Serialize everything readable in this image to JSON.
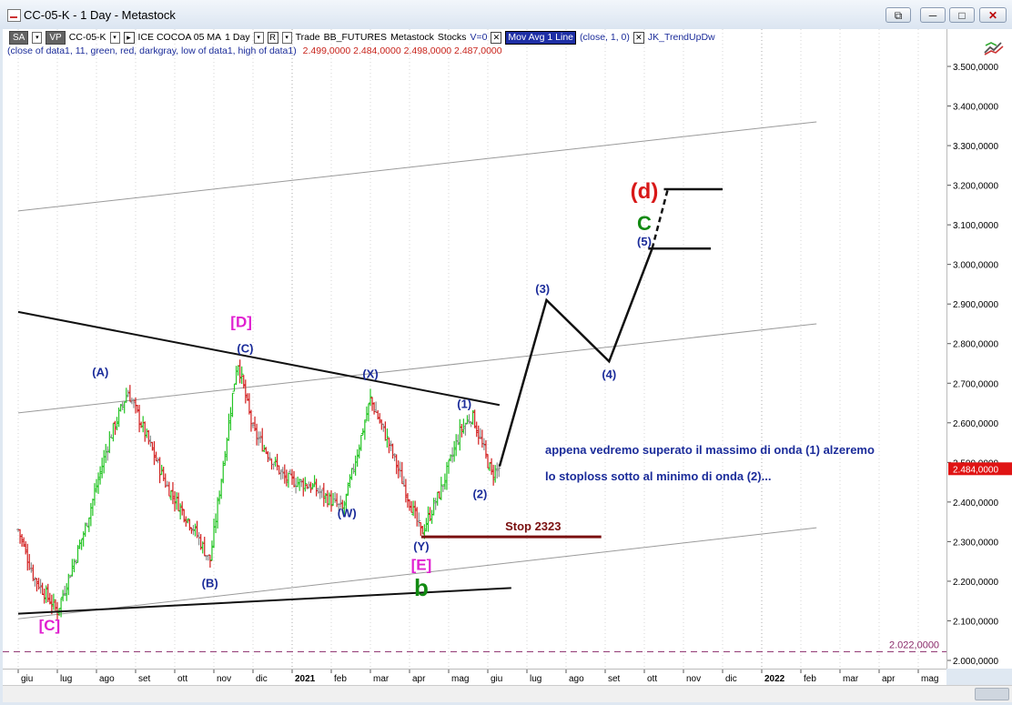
{
  "window": {
    "title": "CC-05-K - 1 Day - Metastock",
    "controls": [
      "⧉",
      "─",
      "□",
      "✕"
    ]
  },
  "toolbar": {
    "sa": "SA",
    "vp": "VP",
    "symbol": "CC-05-K",
    "description": "ICE COCOA 05 MA",
    "interval": "1 Day",
    "trade": "Trade",
    "feed": "BB_FUTURES",
    "provider": "Metastock",
    "type": "Stocks",
    "volume": "V=0",
    "indicator": "Mov Avg 1 Line",
    "indicator_params": "(close,  1,  0)",
    "study": "JK_TrendUpDw"
  },
  "info_line": {
    "text": "(close of data1,  11,  green,  red,  darkgray,  low of data1,  high of data1)",
    "values": "2.499,0000  2.484,0000  2.498,0000  2.487,0000"
  },
  "chart_data": {
    "type": "bar",
    "symbol": "CC-05-K",
    "interval": "1 Day",
    "y_axis": {
      "min": 2000,
      "max": 3500,
      "ticks": [
        "3.500,0000",
        "3.400,0000",
        "3.300,0000",
        "3.200,0000",
        "3.100,0000",
        "3.000,0000",
        "2.900,0000",
        "2.800,0000",
        "2.700,0000",
        "2.600,0000",
        "2.500,0000",
        "2.400,0000",
        "2.300,0000",
        "2.200,0000",
        "2.100,0000",
        "2.000,0000"
      ],
      "tick_values": [
        3500,
        3400,
        3300,
        3200,
        3100,
        3000,
        2900,
        2800,
        2700,
        2600,
        2500,
        2400,
        2300,
        2200,
        2100,
        2000
      ]
    },
    "x_axis": {
      "labels": [
        "giu",
        "lug",
        "ago",
        "set",
        "ott",
        "nov",
        "dic",
        "2021",
        "feb",
        "mar",
        "apr",
        "mag",
        "giu",
        "lug",
        "ago",
        "set",
        "ott",
        "nov",
        "dic",
        "2022",
        "feb",
        "mar",
        "apr",
        "mag"
      ],
      "bold": [
        "2021",
        "2022"
      ]
    },
    "last_price": "2.484,0000",
    "last_price_value": 2484,
    "reference_level": "2.022,0000",
    "reference_value": 2022,
    "pivots": [
      {
        "m": 0.0,
        "p": 2330
      },
      {
        "m": 0.4,
        "p": 2210
      },
      {
        "m": 1.0,
        "p": 2125
      },
      {
        "m": 1.7,
        "p": 2330
      },
      {
        "m": 2.3,
        "p": 2550
      },
      {
        "m": 2.8,
        "p": 2680
      },
      {
        "m": 3.3,
        "p": 2560
      },
      {
        "m": 3.8,
        "p": 2440
      },
      {
        "m": 4.5,
        "p": 2330
      },
      {
        "m": 4.9,
        "p": 2250
      },
      {
        "m": 5.6,
        "p": 2760
      },
      {
        "m": 6.0,
        "p": 2580
      },
      {
        "m": 6.8,
        "p": 2460
      },
      {
        "m": 7.5,
        "p": 2440
      },
      {
        "m": 8.3,
        "p": 2380
      },
      {
        "m": 9.0,
        "p": 2660
      },
      {
        "m": 9.5,
        "p": 2540
      },
      {
        "m": 10.3,
        "p": 2320
      },
      {
        "m": 10.8,
        "p": 2430
      },
      {
        "m": 11.3,
        "p": 2580
      },
      {
        "m": 11.6,
        "p": 2620
      },
      {
        "m": 12.1,
        "p": 2470
      },
      {
        "m": 12.3,
        "p": 2487
      }
    ],
    "wave_labels": [
      {
        "text": "[C]",
        "m": 0.8,
        "p": 2076,
        "color": "#e020d0",
        "size": 17
      },
      {
        "text": "(A)",
        "m": 2.1,
        "p": 2718,
        "color": "#1b2c9a",
        "size": 13
      },
      {
        "text": "(B)",
        "m": 4.9,
        "p": 2185,
        "color": "#1b2c9a",
        "size": 13
      },
      {
        "text": "[D]",
        "m": 5.7,
        "p": 2842,
        "color": "#e020d0",
        "size": 17
      },
      {
        "text": "(C)",
        "m": 5.8,
        "p": 2777,
        "color": "#1b2c9a",
        "size": 13
      },
      {
        "text": "(W)",
        "m": 8.4,
        "p": 2362,
        "color": "#1b2c9a",
        "size": 13
      },
      {
        "text": "(X)",
        "m": 9.0,
        "p": 2713,
        "color": "#1b2c9a",
        "size": 13
      },
      {
        "text": "(Y)",
        "m": 10.3,
        "p": 2278,
        "color": "#1b2c9a",
        "size": 13
      },
      {
        "text": "[E]",
        "m": 10.3,
        "p": 2229,
        "color": "#e020d0",
        "size": 17
      },
      {
        "text": "b",
        "m": 10.3,
        "p": 2163,
        "color": "#128a12",
        "size": 26
      },
      {
        "text": "(1)",
        "m": 11.4,
        "p": 2638,
        "color": "#1b2c9a",
        "size": 13
      },
      {
        "text": "(2)",
        "m": 11.8,
        "p": 2410,
        "color": "#1b2c9a",
        "size": 13
      },
      {
        "text": "(3)",
        "m": 13.4,
        "p": 2928,
        "color": "#1b2c9a",
        "size": 13
      },
      {
        "text": "(4)",
        "m": 15.1,
        "p": 2712,
        "color": "#1b2c9a",
        "size": 13
      },
      {
        "text": "(5)",
        "m": 16.0,
        "p": 3047,
        "color": "#1b2c9a",
        "size": 13
      },
      {
        "text": "C",
        "m": 16.0,
        "p": 3086,
        "color": "#128a12",
        "size": 22
      },
      {
        "text": "(d)",
        "m": 16.0,
        "p": 3167,
        "color": "#d81818",
        "size": 24
      }
    ],
    "projection": [
      {
        "m": 12.3,
        "p": 2490
      },
      {
        "m": 13.5,
        "p": 2910
      },
      {
        "m": 15.1,
        "p": 2755
      },
      {
        "m": 16.2,
        "p": 3040
      }
    ],
    "projection_dashed": [
      {
        "m": 16.2,
        "p": 3040
      },
      {
        "m": 16.6,
        "p": 3190
      }
    ],
    "target_lines": [
      {
        "m1": 16.1,
        "m2": 17.7,
        "p": 3040
      },
      {
        "m1": 16.5,
        "m2": 18.0,
        "p": 3190
      }
    ],
    "trendlines": [
      {
        "m1": 0.0,
        "p1": 2880,
        "m2": 12.3,
        "p2": 2645,
        "width": 2
      },
      {
        "m1": 0.0,
        "p1": 2118,
        "m2": 12.6,
        "p2": 2183,
        "width": 2
      }
    ],
    "channel_lines": [
      {
        "m1": 0.0,
        "p1": 3135,
        "m2": 20.4,
        "p2": 3360
      },
      {
        "m1": 0.0,
        "p1": 2625,
        "m2": 20.4,
        "p2": 2850
      },
      {
        "m1": 0.0,
        "p1": 2105,
        "m2": 20.4,
        "p2": 2335
      }
    ],
    "stop": {
      "label": "Stop 2323",
      "m1": 10.3,
      "m2": 14.9,
      "p": 2312
    },
    "annotations": [
      "appena vedremo superato il massimo di onda (1) alzeremo",
      "lo stoploss sotto al minimo di onda (2)..."
    ]
  }
}
